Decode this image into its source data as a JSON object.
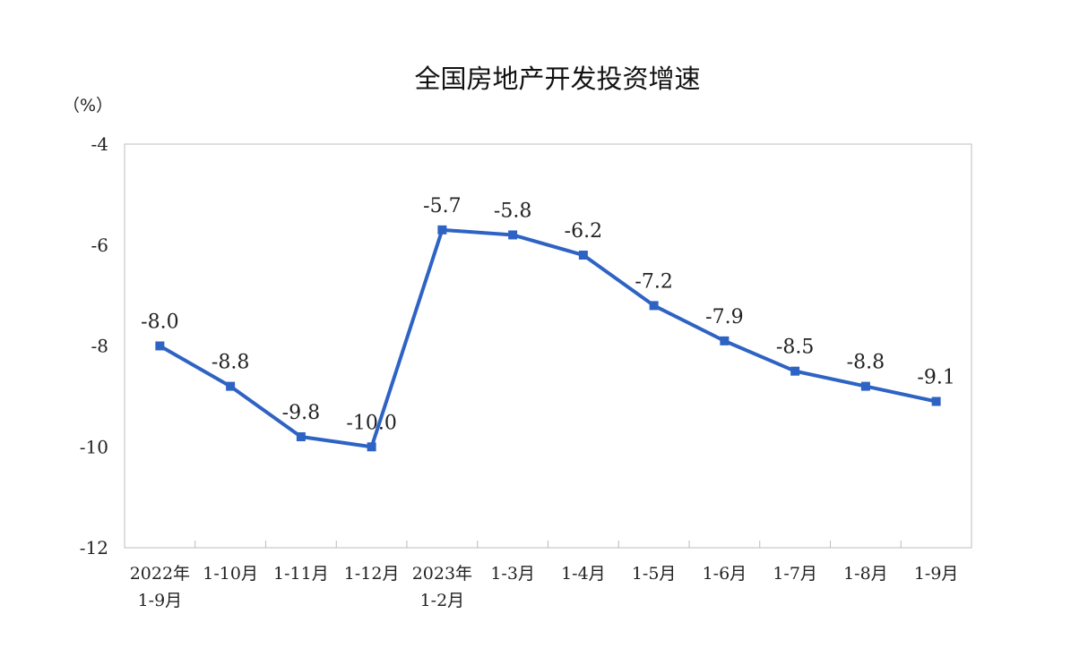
{
  "chart_data": {
    "type": "line",
    "title": "全国房地产开发投资增速",
    "unit": "（%）",
    "categories": [
      [
        "2022年",
        "1-9月"
      ],
      [
        "1-10月"
      ],
      [
        "1-11月"
      ],
      [
        "1-12月"
      ],
      [
        "2023年",
        "1-2月"
      ],
      [
        "1-3月"
      ],
      [
        "1-4月"
      ],
      [
        "1-5月"
      ],
      [
        "1-6月"
      ],
      [
        "1-7月"
      ],
      [
        "1-8月"
      ],
      [
        "1-9月"
      ]
    ],
    "series": [
      {
        "values": [
          -8.0,
          -8.8,
          -9.8,
          -10.0,
          -5.7,
          -5.8,
          -6.2,
          -7.2,
          -7.9,
          -8.5,
          -8.8,
          -9.1
        ],
        "data_labels": [
          "-8.0",
          "-8.8",
          "-9.8",
          "-10.0",
          "-5.7",
          "-5.8",
          "-6.2",
          "-7.2",
          "-7.9",
          "-8.5",
          "-8.8",
          "-9.1"
        ],
        "color": "#2e63c4",
        "marker": "square"
      }
    ],
    "ylim": [
      -12,
      -4
    ],
    "yticks": [
      -4,
      -6,
      -8,
      -10,
      -12
    ],
    "ytick_labels": [
      "-4",
      "-6",
      "-8",
      "-10",
      "-12"
    ],
    "grid": false,
    "legend": "none",
    "frame_color": "#c8c8c8"
  }
}
